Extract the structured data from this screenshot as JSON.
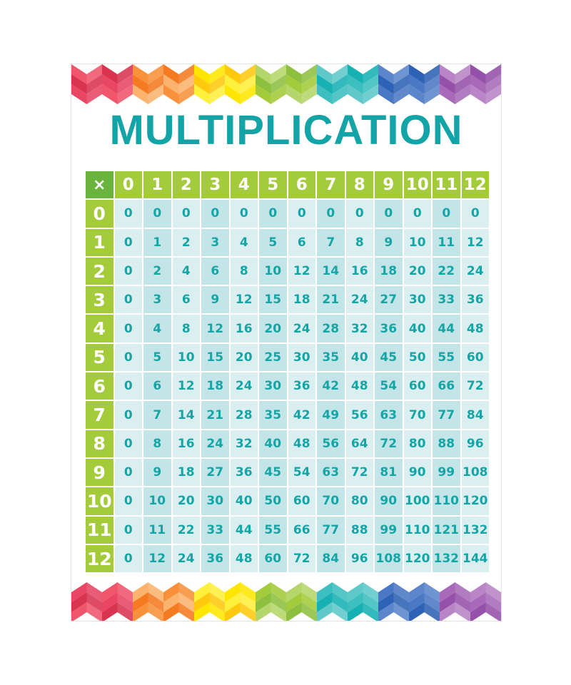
{
  "title": "MULTIPLICATION",
  "corner_symbol": "×",
  "column_headers": [
    "0",
    "1",
    "2",
    "3",
    "4",
    "5",
    "6",
    "7",
    "8",
    "9",
    "10",
    "11",
    "12"
  ],
  "rows": [
    {
      "header": "0",
      "values": [
        "0",
        "0",
        "0",
        "0",
        "0",
        "0",
        "0",
        "0",
        "0",
        "0",
        "0",
        "0",
        "0"
      ]
    },
    {
      "header": "1",
      "values": [
        "0",
        "1",
        "2",
        "3",
        "4",
        "5",
        "6",
        "7",
        "8",
        "9",
        "10",
        "11",
        "12"
      ]
    },
    {
      "header": "2",
      "values": [
        "0",
        "2",
        "4",
        "6",
        "8",
        "10",
        "12",
        "14",
        "16",
        "18",
        "20",
        "22",
        "24"
      ]
    },
    {
      "header": "3",
      "values": [
        "0",
        "3",
        "6",
        "9",
        "12",
        "15",
        "18",
        "21",
        "24",
        "27",
        "30",
        "33",
        "36"
      ]
    },
    {
      "header": "4",
      "values": [
        "0",
        "4",
        "8",
        "12",
        "16",
        "20",
        "24",
        "28",
        "32",
        "36",
        "40",
        "44",
        "48"
      ]
    },
    {
      "header": "5",
      "values": [
        "0",
        "5",
        "10",
        "15",
        "20",
        "25",
        "30",
        "35",
        "40",
        "45",
        "50",
        "55",
        "60"
      ]
    },
    {
      "header": "6",
      "values": [
        "0",
        "6",
        "12",
        "18",
        "24",
        "30",
        "36",
        "42",
        "48",
        "54",
        "60",
        "66",
        "72"
      ]
    },
    {
      "header": "7",
      "values": [
        "0",
        "7",
        "14",
        "21",
        "28",
        "35",
        "42",
        "49",
        "56",
        "63",
        "70",
        "77",
        "84"
      ]
    },
    {
      "header": "8",
      "values": [
        "0",
        "8",
        "16",
        "24",
        "32",
        "40",
        "48",
        "56",
        "64",
        "72",
        "80",
        "88",
        "96"
      ]
    },
    {
      "header": "9",
      "values": [
        "0",
        "9",
        "18",
        "27",
        "36",
        "45",
        "54",
        "63",
        "72",
        "81",
        "90",
        "99",
        "108"
      ]
    },
    {
      "header": "10",
      "values": [
        "0",
        "10",
        "20",
        "30",
        "40",
        "50",
        "60",
        "70",
        "80",
        "90",
        "100",
        "110",
        "120"
      ]
    },
    {
      "header": "11",
      "values": [
        "0",
        "11",
        "22",
        "33",
        "44",
        "55",
        "66",
        "77",
        "88",
        "99",
        "110",
        "121",
        "132"
      ]
    },
    {
      "header": "12",
      "values": [
        "0",
        "12",
        "24",
        "36",
        "48",
        "60",
        "72",
        "84",
        "96",
        "108",
        "120",
        "132",
        "144"
      ]
    }
  ],
  "colors": {
    "title": "#12a4a7",
    "header_green": "#a3cb3b",
    "corner_green": "#6ab43e",
    "cell_light": "#dbeff0",
    "cell_dark": "#c4e5e7",
    "cell_text": "#14a5a7"
  },
  "border_palette": [
    [
      "#f0556b",
      "#d9344f",
      "#e84662"
    ],
    [
      "#f8913a",
      "#f57a22",
      "#fbb36e"
    ],
    [
      "#ffe600",
      "#ffc90e",
      "#fff03c"
    ],
    [
      "#b5d66a",
      "#8dc03f",
      "#a3cb3b"
    ],
    [
      "#5fc9c9",
      "#17b1b3",
      "#3dbfc0"
    ],
    [
      "#5b86cc",
      "#2d62b6",
      "#4a78c4"
    ],
    [
      "#b985c6",
      "#9550aa",
      "#a86ab8"
    ]
  ]
}
